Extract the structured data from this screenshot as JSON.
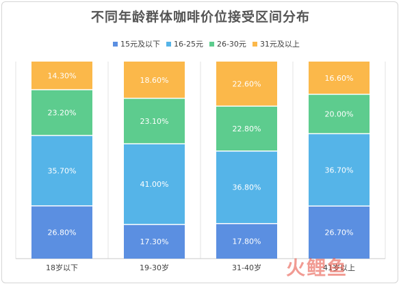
{
  "chart_data": {
    "type": "bar",
    "stacked": true,
    "percent_stacked": true,
    "title": "不同年龄群体咖啡价位接受区间分布",
    "categories": [
      "18岁以下",
      "19-30岁",
      "31-40岁",
      "41岁以上"
    ],
    "series": [
      {
        "name": "15元及以下",
        "color": "#5b8fe1",
        "values": [
          26.8,
          17.3,
          17.8,
          26.7
        ],
        "labels": [
          "26.80%",
          "17.30%",
          "17.80%",
          "26.70%"
        ]
      },
      {
        "name": "16-25元",
        "color": "#55b4e8",
        "values": [
          35.7,
          41.0,
          36.8,
          36.7
        ],
        "labels": [
          "35.70%",
          "41.00%",
          "36.80%",
          "36.70%"
        ]
      },
      {
        "name": "26-30元",
        "color": "#5dcc8e",
        "values": [
          23.2,
          23.1,
          22.8,
          20.0
        ],
        "labels": [
          "23.20%",
          "23.10%",
          "22.80%",
          "20.00%"
        ]
      },
      {
        "name": "31元及以上",
        "color": "#fbb84a",
        "values": [
          14.3,
          18.6,
          22.6,
          16.6
        ],
        "labels": [
          "14.30%",
          "18.60%",
          "22.60%",
          "16.60%"
        ]
      }
    ],
    "ylim": [
      0,
      100
    ],
    "legend_position": "top",
    "grid": false
  },
  "watermark": "火鲤鱼"
}
